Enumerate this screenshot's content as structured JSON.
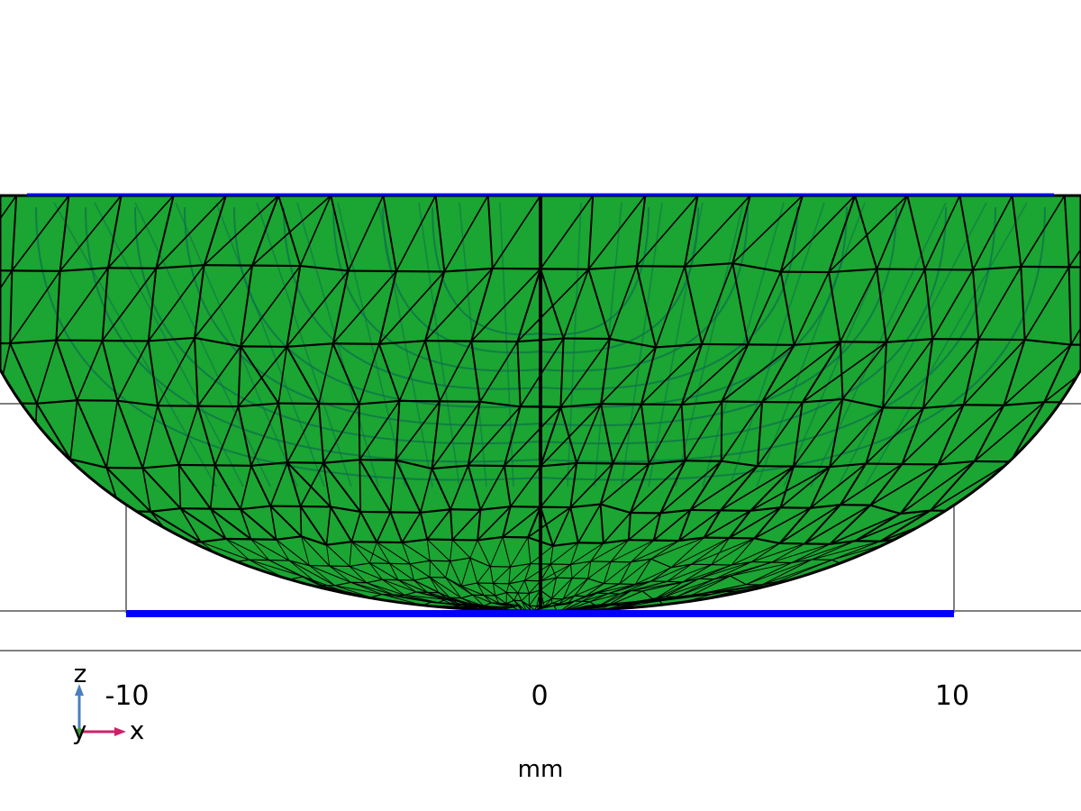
{
  "view": {
    "axis_unit": "mm",
    "x_ticks": [
      "-10",
      "0",
      "10"
    ],
    "triad": {
      "z": "z",
      "y": "y",
      "x": "x"
    }
  },
  "colors": {
    "mesh_fill": "#1ba532",
    "mesh_edge": "#000000",
    "inner_edge": "#0b6e4f",
    "boundary_line": "#0000ff",
    "frame_line": "#808080",
    "triad_z": "#4a7fbf",
    "triad_x": "#d0206a",
    "triad_y": "#3a9a3a"
  },
  "icons": {
    "triad": "coordinate-axes-icon"
  }
}
